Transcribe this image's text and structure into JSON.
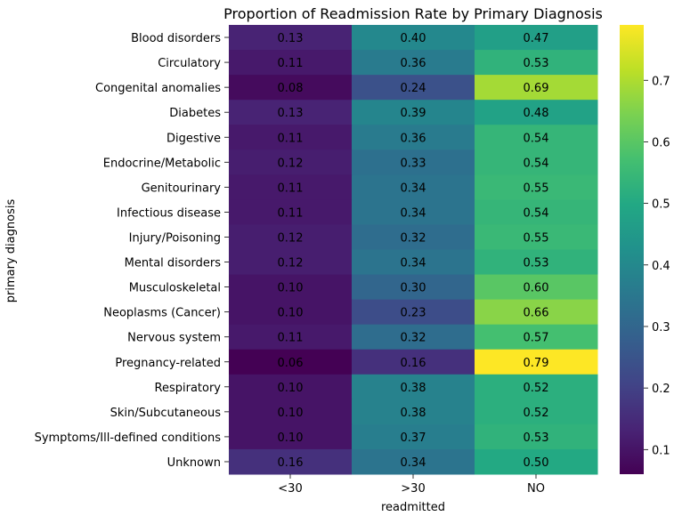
{
  "chart_data": {
    "type": "heatmap",
    "title": "Proportion of Readmission Rate by Primary Diagnosis",
    "xlabel": "readmitted",
    "ylabel": "primary diagnosis",
    "columns": [
      "<30",
      ">30",
      "NO"
    ],
    "rows": [
      "Blood disorders",
      "Circulatory",
      "Congenital anomalies",
      "Diabetes",
      "Digestive",
      "Endocrine/Metabolic",
      "Genitourinary",
      "Infectious disease",
      "Injury/Poisoning",
      "Mental disorders",
      "Musculoskeletal",
      "Neoplasms (Cancer)",
      "Nervous system",
      "Pregnancy-related",
      "Respiratory",
      "Skin/Subcutaneous",
      "Symptoms/Ill-defined conditions",
      "Unknown"
    ],
    "values": [
      [
        0.13,
        0.4,
        0.47
      ],
      [
        0.11,
        0.36,
        0.53
      ],
      [
        0.08,
        0.24,
        0.69
      ],
      [
        0.13,
        0.39,
        0.48
      ],
      [
        0.11,
        0.36,
        0.54
      ],
      [
        0.12,
        0.33,
        0.54
      ],
      [
        0.11,
        0.34,
        0.55
      ],
      [
        0.11,
        0.34,
        0.54
      ],
      [
        0.12,
        0.32,
        0.55
      ],
      [
        0.12,
        0.34,
        0.53
      ],
      [
        0.1,
        0.3,
        0.6
      ],
      [
        0.1,
        0.23,
        0.66
      ],
      [
        0.11,
        0.32,
        0.57
      ],
      [
        0.06,
        0.16,
        0.79
      ],
      [
        0.1,
        0.38,
        0.52
      ],
      [
        0.1,
        0.38,
        0.52
      ],
      [
        0.1,
        0.37,
        0.53
      ],
      [
        0.16,
        0.34,
        0.5
      ]
    ],
    "colormap": "viridis",
    "vmin": 0.06,
    "vmax": 0.79,
    "colorbar_ticks": [
      "0.1",
      "0.2",
      "0.3",
      "0.4",
      "0.5",
      "0.6",
      "0.7"
    ],
    "annotations": true,
    "grid": false
  }
}
